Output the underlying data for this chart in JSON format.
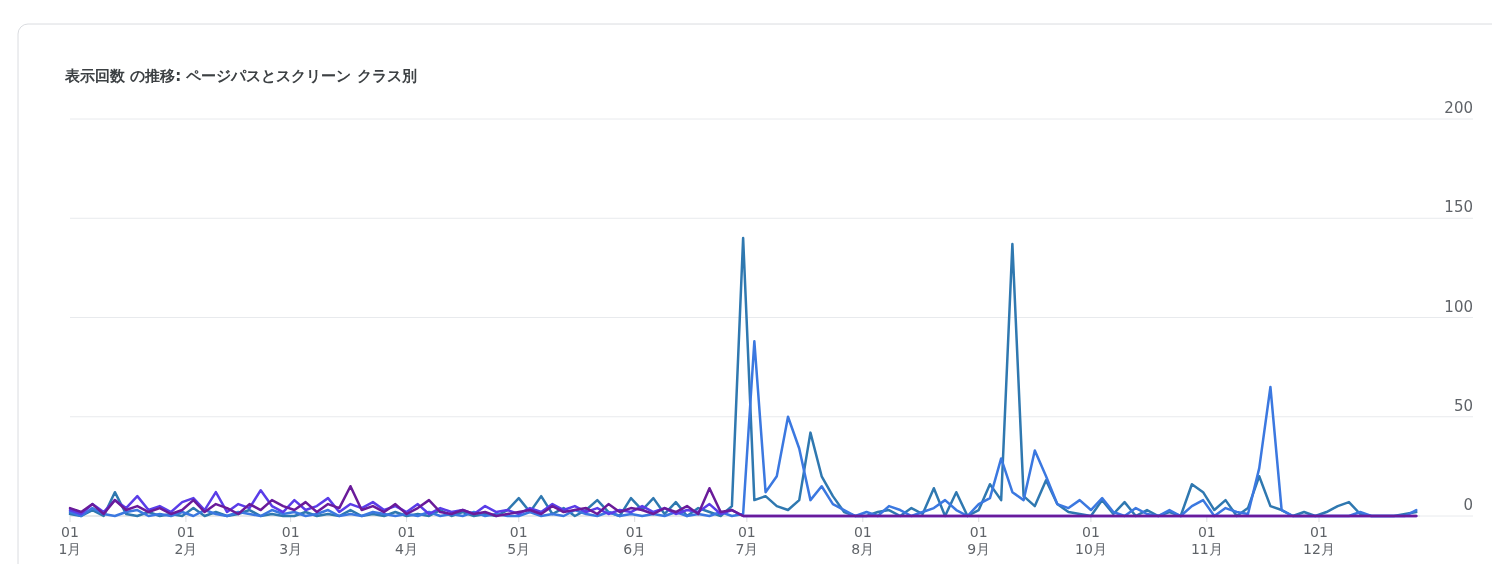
{
  "chart_data": {
    "type": "line",
    "title": "表示回数 の推移: ページパスとスクリーン クラス別",
    "x": [
      "--01-01",
      "--01-04",
      "--01-07",
      "--01-10",
      "--01-13",
      "--01-16",
      "--01-19",
      "--01-22",
      "--01-25",
      "--01-28",
      "--01-31",
      "--02-03",
      "--02-06",
      "--02-09",
      "--02-12",
      "--02-15",
      "--02-18",
      "--02-21",
      "--02-24",
      "--02-27",
      "--03-02",
      "--03-05",
      "--03-08",
      "--03-11",
      "--03-14",
      "--03-17",
      "--03-20",
      "--03-23",
      "--03-26",
      "--03-29",
      "--04-01",
      "--04-04",
      "--04-07",
      "--04-10",
      "--04-13",
      "--04-16",
      "--04-19",
      "--04-22",
      "--04-25",
      "--04-28",
      "--05-01",
      "--05-04",
      "--05-07",
      "--05-10",
      "--05-13",
      "--05-16",
      "--05-19",
      "--05-22",
      "--05-25",
      "--05-28",
      "--05-31",
      "--06-03",
      "--06-06",
      "--06-09",
      "--06-12",
      "--06-15",
      "--06-18",
      "--06-21",
      "--06-24",
      "--06-27",
      "--06-30",
      "--07-03",
      "--07-06",
      "--07-09",
      "--07-12",
      "--07-15",
      "--07-18",
      "--07-21",
      "--07-24",
      "--07-27",
      "--07-30",
      "--08-02",
      "--08-05",
      "--08-08",
      "--08-11",
      "--08-14",
      "--08-17",
      "--08-20",
      "--08-23",
      "--08-26",
      "--08-29",
      "--09-01",
      "--09-04",
      "--09-07",
      "--09-10",
      "--09-13",
      "--09-16",
      "--09-19",
      "--09-22",
      "--09-25",
      "--09-28",
      "--10-01",
      "--10-04",
      "--10-07",
      "--10-10",
      "--10-13",
      "--10-16",
      "--10-19",
      "--10-22",
      "--10-25",
      "--10-28",
      "--10-31",
      "--11-03",
      "--11-06",
      "--11-09",
      "--11-12",
      "--11-15",
      "--11-18",
      "--11-21",
      "--11-24",
      "--11-27",
      "--11-30",
      "--12-03",
      "--12-06",
      "--12-09",
      "--12-12",
      "--12-15",
      "--12-18",
      "--12-21",
      "--12-24",
      "--12-27"
    ],
    "series": [
      {
        "color": "#2f78b0",
        "values": [
          1,
          0,
          3,
          0,
          12,
          1,
          0,
          2,
          0,
          1,
          0,
          4,
          0,
          2,
          0,
          1,
          3,
          0,
          1,
          0,
          0,
          2,
          0,
          1,
          0,
          3,
          0,
          1,
          0,
          2,
          0,
          1,
          0,
          3,
          0,
          2,
          0,
          1,
          0,
          3,
          9,
          2,
          10,
          1,
          4,
          0,
          3,
          8,
          2,
          0,
          9,
          3,
          9,
          1,
          7,
          0,
          4,
          2,
          0,
          5,
          140,
          8,
          10,
          5,
          3,
          8,
          42,
          20,
          10,
          2,
          0,
          0,
          2,
          3,
          0,
          4,
          1,
          14,
          0,
          12,
          0,
          3,
          16,
          8,
          137,
          10,
          5,
          18,
          6,
          2,
          1,
          0,
          8,
          1,
          7,
          0,
          3,
          0,
          2,
          0,
          16,
          12,
          3,
          8,
          0,
          4,
          20,
          5,
          3,
          0,
          2,
          0,
          2,
          5,
          7,
          1,
          0,
          0,
          0,
          1,
          2
        ]
      },
      {
        "color": "#3b78e0",
        "values": [
          2,
          0,
          4,
          1,
          0,
          2,
          3,
          0,
          1,
          0,
          2,
          0,
          3,
          1,
          0,
          2,
          1,
          0,
          3,
          1,
          2,
          0,
          1,
          3,
          0,
          1,
          0,
          2,
          1,
          0,
          1,
          0,
          2,
          0,
          1,
          0,
          2,
          0,
          1,
          0,
          0,
          2,
          0,
          1,
          0,
          3,
          1,
          0,
          2,
          0,
          1,
          0,
          1,
          0,
          2,
          0,
          1,
          0,
          2,
          0,
          1,
          88,
          12,
          20,
          50,
          34,
          8,
          15,
          6,
          3,
          0,
          2,
          0,
          5,
          3,
          0,
          2,
          4,
          8,
          3,
          0,
          6,
          9,
          29,
          12,
          8,
          33,
          20,
          6,
          4,
          8,
          3,
          9,
          2,
          0,
          4,
          1,
          0,
          3,
          0,
          5,
          8,
          0,
          4,
          2,
          1,
          24,
          65,
          3,
          0,
          0,
          0,
          0,
          0,
          0,
          2,
          0,
          0,
          0,
          0,
          3
        ]
      },
      {
        "color": "#5a3de8",
        "values": [
          3,
          1,
          6,
          2,
          8,
          4,
          10,
          3,
          5,
          2,
          7,
          9,
          3,
          12,
          2,
          6,
          4,
          13,
          5,
          2,
          8,
          3,
          5,
          9,
          2,
          6,
          4,
          7,
          3,
          5,
          2,
          6,
          1,
          4,
          2,
          3,
          1,
          5,
          2,
          3,
          1,
          4,
          2,
          6,
          3,
          5,
          2,
          4,
          1,
          3,
          2,
          5,
          2,
          4,
          1,
          3,
          2,
          6,
          1,
          3,
          0,
          0,
          0,
          0,
          0,
          0,
          0,
          0,
          0,
          0,
          0,
          0,
          0,
          0,
          0,
          0,
          0,
          0,
          0,
          0,
          0,
          0,
          0,
          0,
          0,
          0,
          0,
          0,
          0,
          0,
          0,
          0,
          0,
          0,
          0,
          0,
          0,
          0,
          0,
          0,
          0,
          0,
          0,
          0,
          0,
          0,
          0,
          0,
          0,
          0,
          0,
          0,
          0,
          0,
          0,
          0,
          0,
          0,
          0,
          0,
          0
        ]
      },
      {
        "color": "#6a1b9a",
        "values": [
          4,
          2,
          6,
          1,
          8,
          3,
          5,
          2,
          4,
          1,
          3,
          8,
          2,
          6,
          4,
          1,
          6,
          3,
          8,
          5,
          3,
          7,
          2,
          6,
          4,
          15,
          3,
          5,
          2,
          6,
          1,
          4,
          8,
          2,
          1,
          3,
          1,
          2,
          0,
          1,
          2,
          3,
          1,
          5,
          2,
          3,
          4,
          1,
          6,
          2,
          4,
          3,
          1,
          4,
          2,
          5,
          1,
          14,
          2,
          3,
          0,
          0,
          0,
          0,
          0,
          0,
          0,
          0,
          0,
          0,
          0,
          0,
          0,
          0,
          0,
          0,
          0,
          0,
          0,
          0,
          0,
          0,
          0,
          0,
          0,
          0,
          0,
          0,
          0,
          0,
          0,
          0,
          0,
          0,
          0,
          0,
          0,
          0,
          0,
          0,
          0,
          0,
          0,
          0,
          0,
          0,
          0,
          0,
          0,
          0,
          0,
          0,
          0,
          0,
          0,
          0,
          0,
          0,
          0,
          0,
          0
        ]
      }
    ],
    "xlim": [
      "--01-01",
      "--12-28"
    ],
    "xticks": [
      {
        "value": "--01-01",
        "label": "01\n1月"
      },
      {
        "value": "--02-01",
        "label": "01\n2月"
      },
      {
        "value": "--03-01",
        "label": "01\n3月"
      },
      {
        "value": "--04-01",
        "label": "01\n4月"
      },
      {
        "value": "--05-01",
        "label": "01\n5月"
      },
      {
        "value": "--06-01",
        "label": "01\n6月"
      },
      {
        "value": "--07-01",
        "label": "01\n7月"
      },
      {
        "value": "--08-01",
        "label": "01\n8月"
      },
      {
        "value": "--09-01",
        "label": "01\n9月"
      },
      {
        "value": "--10-01",
        "label": "01\n10月"
      },
      {
        "value": "--11-01",
        "label": "01\n11月"
      },
      {
        "value": "--12-01",
        "label": "01\n12月"
      }
    ],
    "ylim": [
      0,
      200
    ],
    "yticks": [
      0,
      50,
      100,
      150,
      200
    ],
    "grid": "y"
  }
}
